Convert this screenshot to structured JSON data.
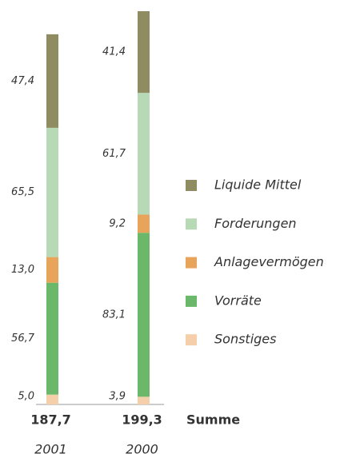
{
  "chart_data": {
    "type": "stacked_bar",
    "categories": [
      "2001",
      "2000"
    ],
    "series": [
      {
        "name": "Sonstiges",
        "color": "#f5cfaa",
        "values": [
          5.0,
          3.9
        ],
        "value_labels": [
          "5,0",
          "3,9"
        ]
      },
      {
        "name": "Vorräte",
        "color": "#6cb86a",
        "values": [
          56.7,
          83.1
        ],
        "value_labels": [
          "56,7",
          "83,1"
        ]
      },
      {
        "name": "Anlagevermögen",
        "color": "#e9a45c",
        "values": [
          13.0,
          9.2
        ],
        "value_labels": [
          "13,0",
          "9,2"
        ]
      },
      {
        "name": "Forderungen",
        "color": "#b8d9b5",
        "values": [
          65.5,
          61.7
        ],
        "value_labels": [
          "65,5",
          "61,7"
        ]
      },
      {
        "name": "Liquide Mittel",
        "color": "#8f8c62",
        "values": [
          47.4,
          41.4
        ],
        "value_labels": [
          "47,4",
          "41,4"
        ]
      }
    ],
    "totals": [
      187.7,
      199.3
    ],
    "total_labels": [
      "187,7",
      "199,3"
    ],
    "total_name": "Summe",
    "legend": "right"
  }
}
